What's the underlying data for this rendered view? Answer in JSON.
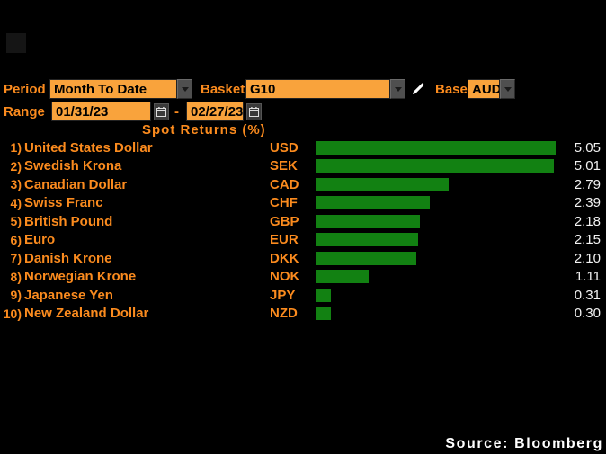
{
  "controls": {
    "period_label": "Period",
    "period_value": "Month To Date",
    "basket_label": "Basket",
    "basket_value": "G10",
    "base_label": "Base",
    "base_value": "AUD",
    "range_label": "Range",
    "range_start": "01/31/23",
    "range_separator": "-",
    "range_end": "02/27/23"
  },
  "icons": {
    "dropdown_arrow": "chevron-down",
    "calendar": "calendar",
    "pencil": "edit-pencil"
  },
  "chart_data": {
    "type": "bar",
    "orientation": "horizontal",
    "title": "Spot Returns (%)",
    "xlim": [
      0,
      5.05
    ],
    "grid": false,
    "value_format": "two_decimals",
    "bar_color": "#128112",
    "value_text_color": "#f2f2f2",
    "label_color": "#fb8b1e",
    "rows": [
      {
        "rank": "1)",
        "name": "United States Dollar",
        "code": "USD",
        "value": 5.05
      },
      {
        "rank": "2)",
        "name": "Swedish Krona",
        "code": "SEK",
        "value": 5.01
      },
      {
        "rank": "3)",
        "name": "Canadian Dollar",
        "code": "CAD",
        "value": 2.79
      },
      {
        "rank": "4)",
        "name": "Swiss Franc",
        "code": "CHF",
        "value": 2.39
      },
      {
        "rank": "5)",
        "name": "British Pound",
        "code": "GBP",
        "value": 2.18
      },
      {
        "rank": "6)",
        "name": "Euro",
        "code": "EUR",
        "value": 2.15
      },
      {
        "rank": "7)",
        "name": "Danish Krone",
        "code": "DKK",
        "value": 2.1
      },
      {
        "rank": "8)",
        "name": "Norwegian Krone",
        "code": "NOK",
        "value": 1.11
      },
      {
        "rank": "9)",
        "name": "Japanese Yen",
        "code": "JPY",
        "value": 0.31
      },
      {
        "rank": "10)",
        "name": "New Zealand Dollar",
        "code": "NZD",
        "value": 0.3
      }
    ]
  },
  "footer": {
    "source": "Source:  Bloomberg"
  },
  "colors": {
    "background": "#000000",
    "label_orange": "#fb8b1e",
    "field_orange": "#f9a33c",
    "field_text": "#000000",
    "bar_green": "#128112",
    "value_white": "#f2f2f2",
    "button_gray": "#4f4f4f"
  }
}
